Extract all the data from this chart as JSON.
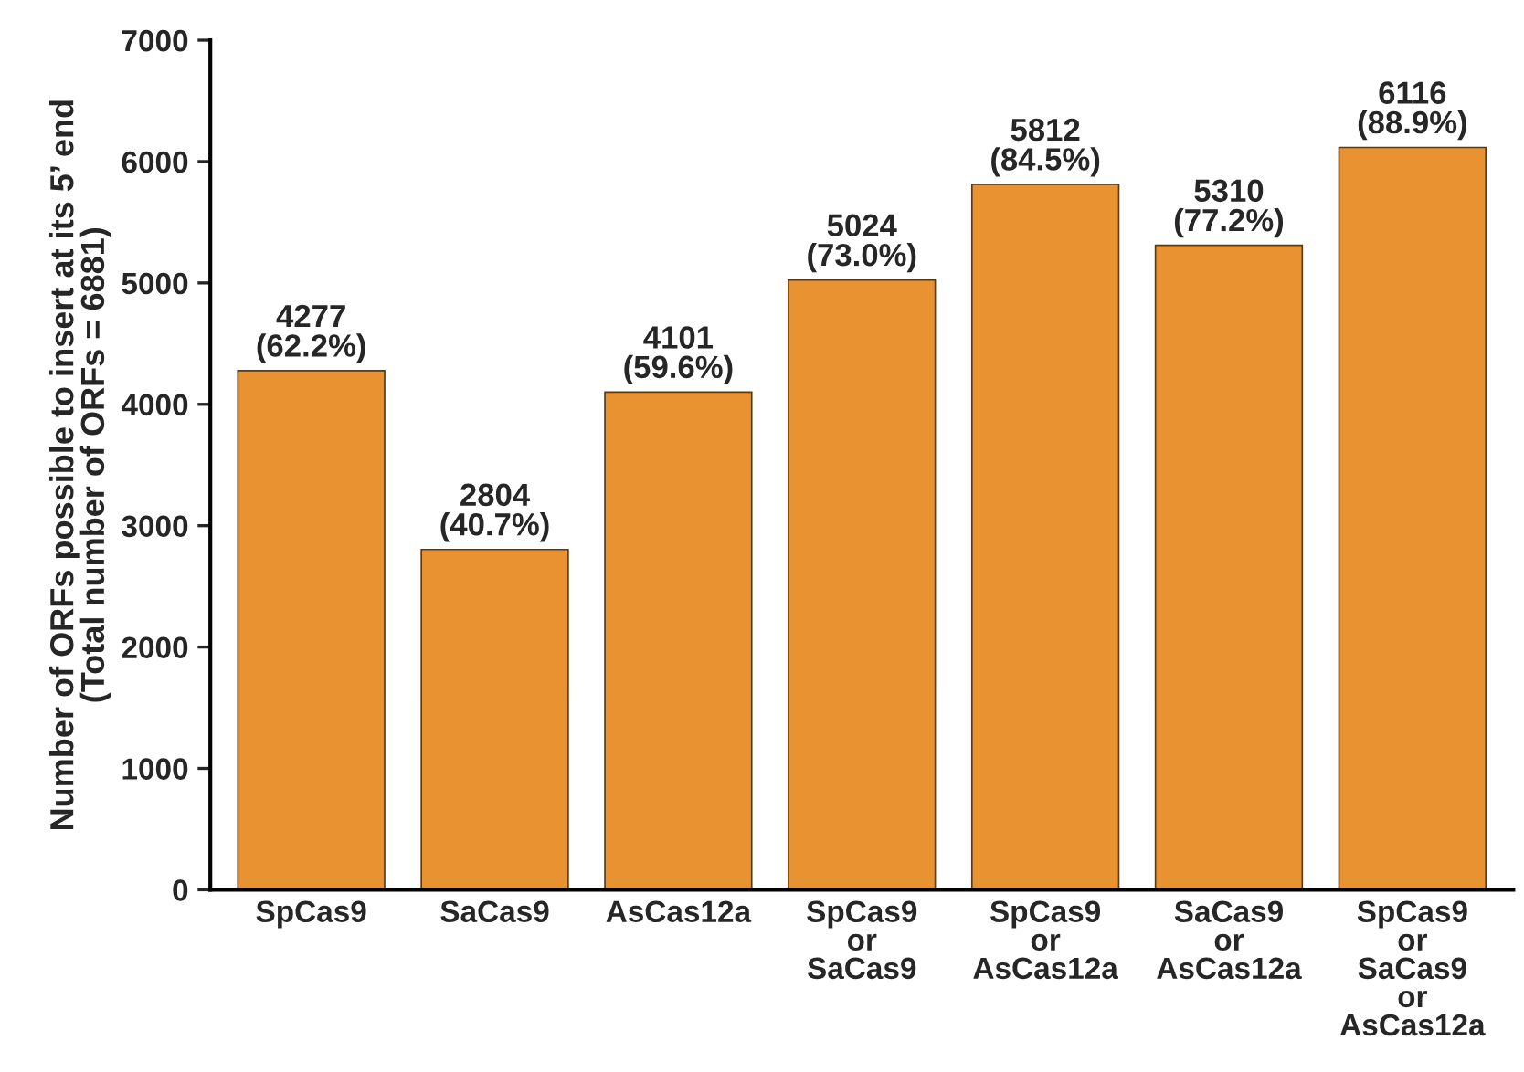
{
  "chart_data": {
    "type": "bar",
    "ylabel": "Number of ORFs possible to insert at its 5’ end\n(Total number of ORFs = 6881)",
    "categories": [
      "SpCas9",
      "SaCas9",
      "AsCas12a",
      "SpCas9\nor\nSaCas9",
      "SpCas9\nor\nAsCas12a",
      "SaCas9\nor\nAsCas12a",
      "SpCas9\nor\nSaCas9\nor\nAsCas12a"
    ],
    "values": [
      4277,
      2804,
      4101,
      5024,
      5812,
      5310,
      6116
    ],
    "value_labels": [
      "4277\n(62.2%)",
      "2804\n(40.7%)",
      "4101\n(59.6%)",
      "5024\n(73.0%)",
      "5812\n(84.5%)",
      "5310\n(77.2%)",
      "6116\n(88.9%)"
    ],
    "color": "#e89232",
    "ylim": [
      0,
      7000
    ],
    "yticks": [
      0,
      1000,
      2000,
      3000,
      4000,
      5000,
      6000,
      7000
    ],
    "grid": false,
    "legend": false
  }
}
